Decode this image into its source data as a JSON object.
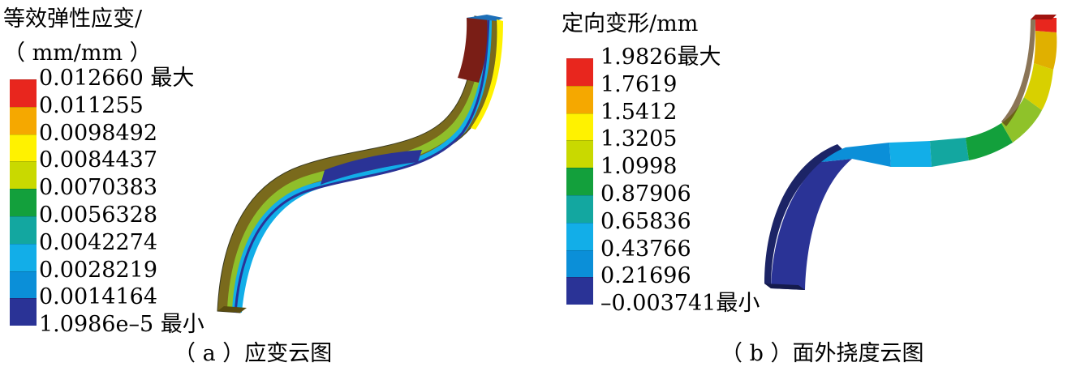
{
  "panel_a": {
    "legend_title_line1": "等效弹性应变/",
    "legend_title_line2": "（ mm/mm ）",
    "legend_labels": [
      "0.012660 最大",
      "0.011255",
      "0.0098492",
      "0.0084437",
      "0.0070383",
      "0.0056328",
      "0.0042274",
      "0.0028219",
      "0.0014164",
      "1.0986e–5 最小"
    ],
    "legend_colors": [
      "#e8261e",
      "#f5a800",
      "#fff200",
      "#c9d900",
      "#13a03c",
      "#13a7a0",
      "#12aee8",
      "#0b8fd8",
      "#2a3396"
    ],
    "caption": "（ a ）应变云图"
  },
  "panel_b": {
    "legend_title": "定向变形/mm",
    "legend_labels": [
      "1.9826最大",
      "1.7619",
      "1.5412",
      "1.3205",
      "1.0998",
      "0.87906",
      "0.65836",
      "0.43766",
      "0.21696",
      "–0.003741最小"
    ],
    "legend_colors": [
      "#e8261e",
      "#f5a800",
      "#fff200",
      "#c9d900",
      "#13a03c",
      "#13a7a0",
      "#12aee8",
      "#0b8fd8",
      "#2a3396"
    ],
    "caption": "（ b ）面外挠度云图"
  }
}
